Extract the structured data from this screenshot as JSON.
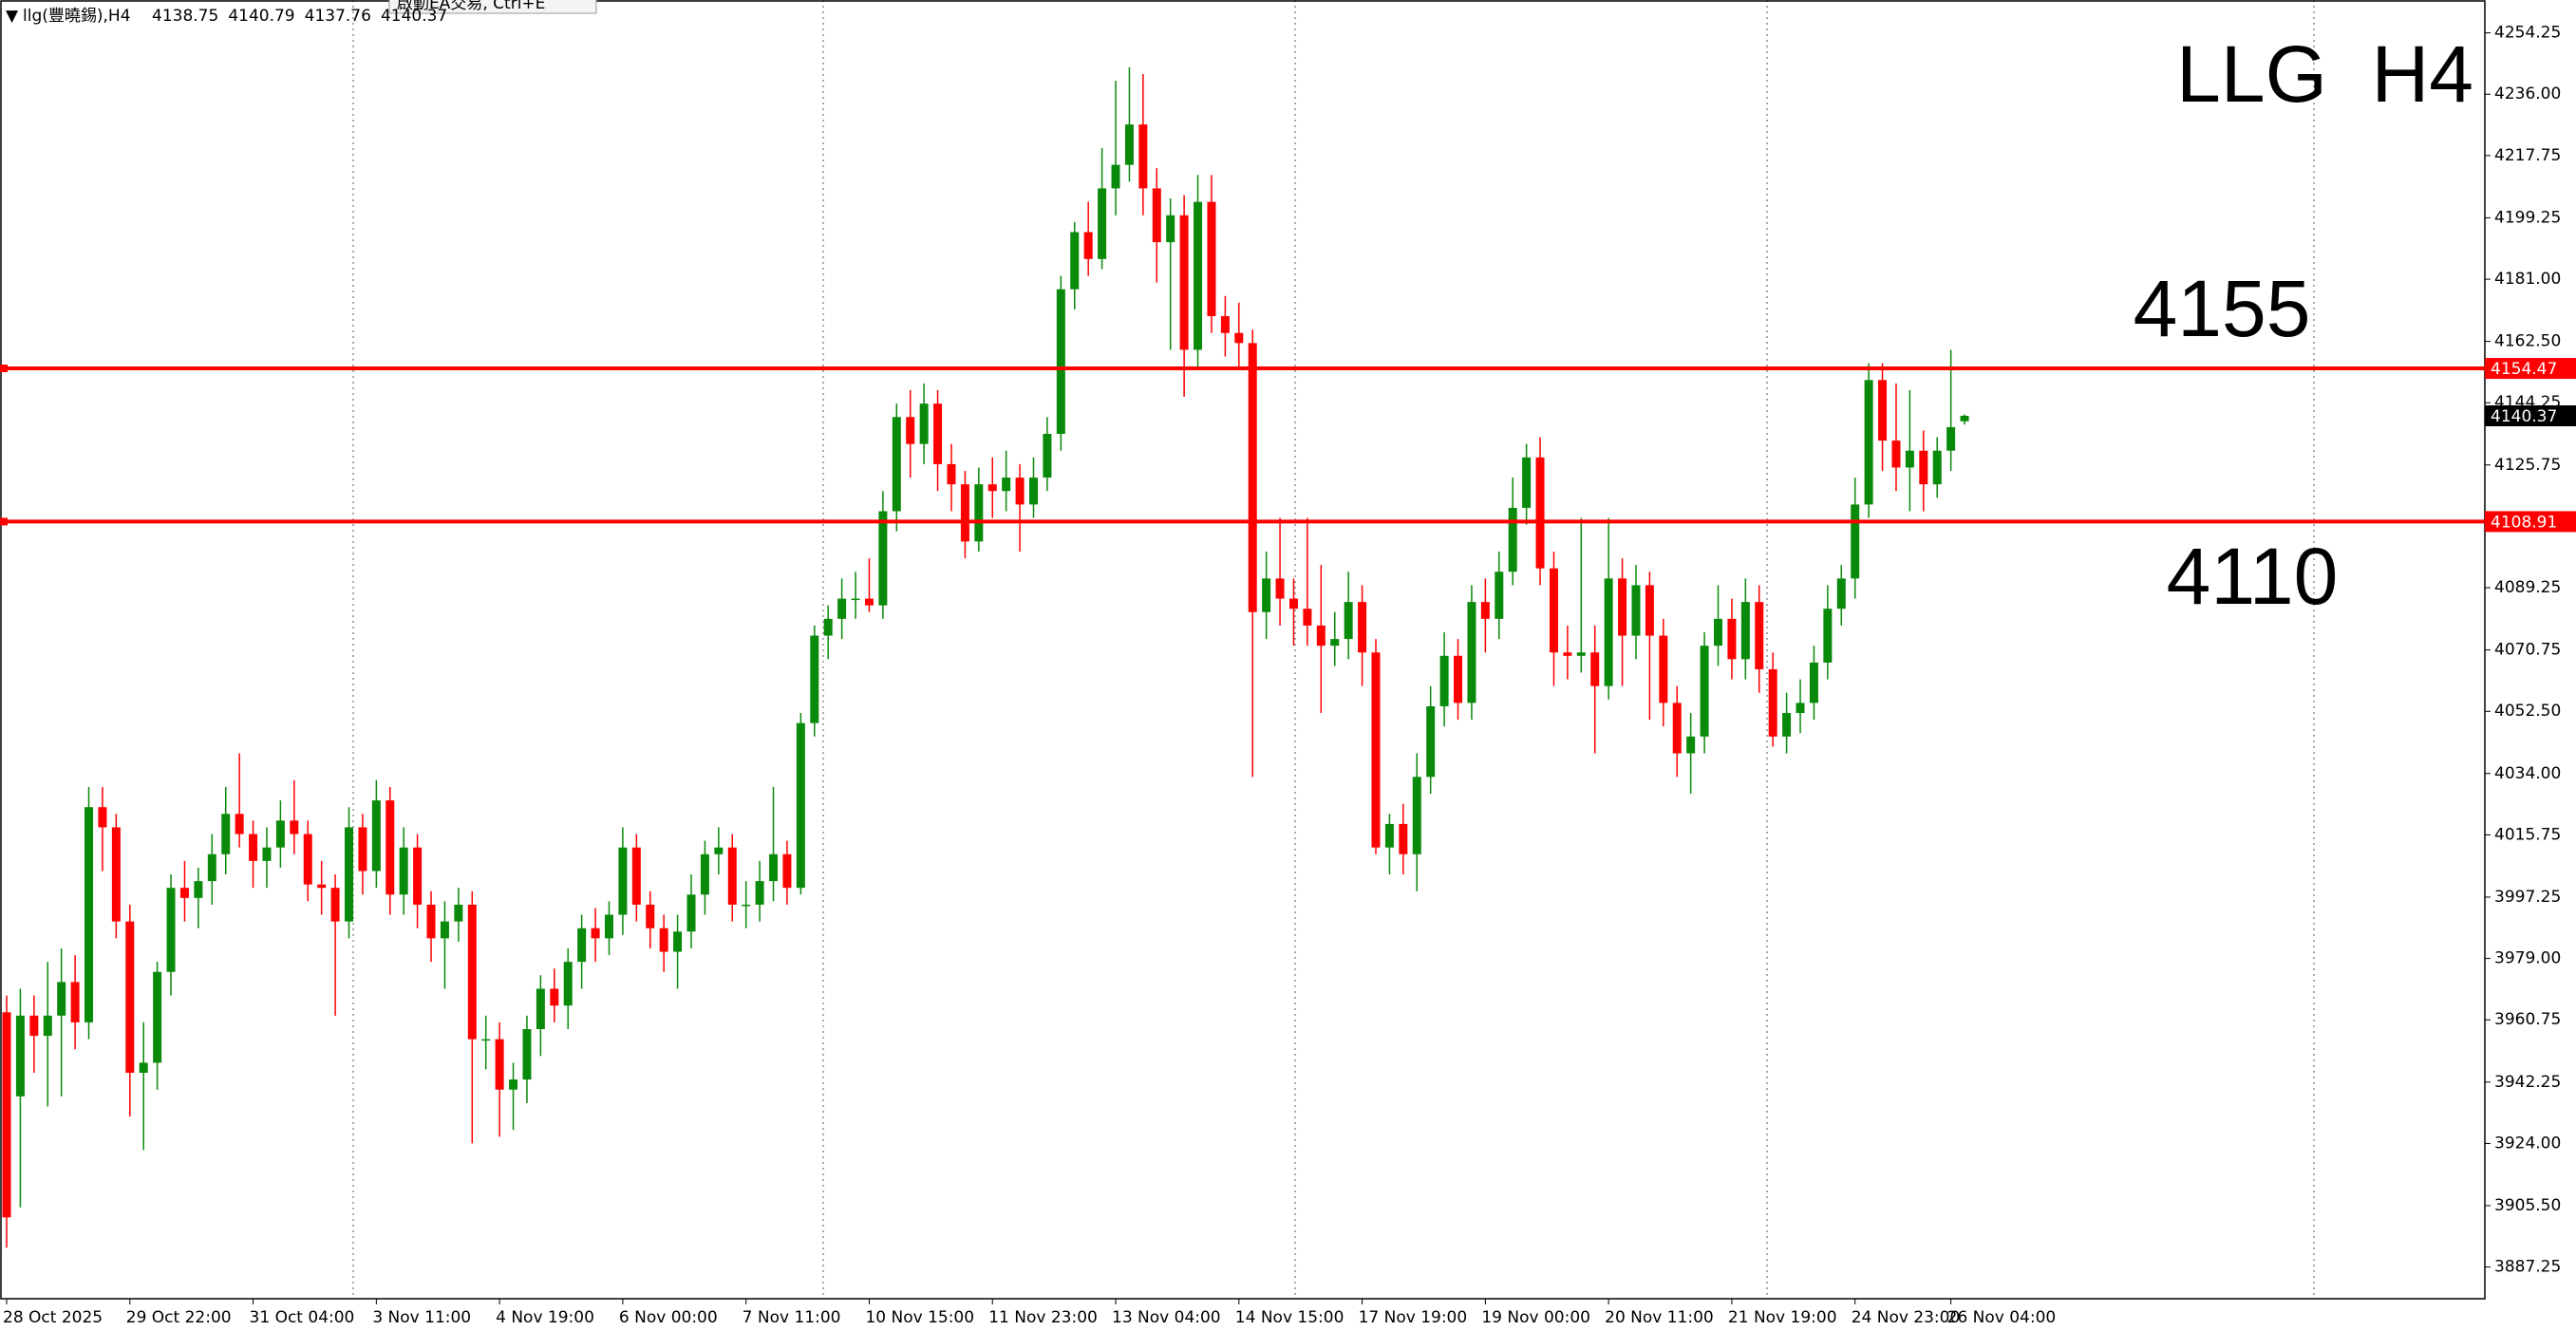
{
  "chart_data": {
    "type": "candlestick",
    "header": "llg(豐曉錫),H4",
    "tooltip": "啟動EA交易, Ctrl+E",
    "title": "LLG  H4",
    "annotations": [
      "4155",
      "4110"
    ],
    "up_color": "#0a8a0a",
    "down_color": "#ff0000",
    "ylim": [
      3887.25,
      4254.25
    ],
    "yticks": [
      4254.25,
      {
        "value": 4236,
        "label": "4236.00"
      },
      4217.75,
      4199.25,
      {
        "value": 4181,
        "label": "4181.00"
      },
      {
        "value": 4162.5,
        "label": "4162.50"
      },
      4144.25,
      4125.75,
      4089.25,
      4070.75,
      {
        "value": 4052.5,
        "label": "4052.50"
      },
      {
        "value": 4034,
        "label": "4034.00"
      },
      4015.75,
      3997.25,
      {
        "value": 3979,
        "label": "3979.00"
      },
      3960.75,
      3942.25,
      {
        "value": 3924,
        "label": "3924.00"
      },
      {
        "value": 3905.5,
        "label": "3905.50"
      },
      3887.25
    ],
    "hlines": [
      {
        "value": 4154.47,
        "color": "#ff0000"
      },
      {
        "value": 4108.91,
        "color": "#ff0000"
      }
    ],
    "categories": [
      "28 Oct 2025",
      null,
      null,
      null,
      null,
      null,
      null,
      null,
      null,
      "29 Oct 22:00",
      null,
      null,
      null,
      null,
      null,
      null,
      null,
      null,
      "31 Oct 04:00",
      null,
      null,
      null,
      null,
      null,
      null,
      null,
      null,
      "3 Nov 11:00",
      null,
      null,
      null,
      null,
      null,
      null,
      null,
      null,
      "4 Nov 19:00",
      null,
      null,
      null,
      null,
      null,
      null,
      null,
      null,
      "6 Nov 00:00",
      null,
      null,
      null,
      null,
      null,
      null,
      null,
      null,
      "7 Nov 11:00",
      null,
      null,
      null,
      null,
      null,
      null,
      null,
      null,
      "10 Nov 15:00",
      null,
      null,
      null,
      null,
      null,
      null,
      null,
      null,
      "11 Nov 23:00",
      null,
      null,
      null,
      null,
      null,
      null,
      null,
      null,
      "13 Nov 04:00",
      null,
      null,
      null,
      null,
      null,
      null,
      null,
      null,
      "14 Nov 15:00",
      null,
      null,
      null,
      null,
      null,
      null,
      null,
      null,
      "17 Nov 19:00",
      null,
      null,
      null,
      null,
      null,
      null,
      null,
      null,
      "19 Nov 00:00",
      null,
      null,
      null,
      null,
      null,
      null,
      null,
      null,
      "20 Nov 11:00",
      null,
      null,
      null,
      null,
      null,
      null,
      null,
      null,
      "21 Nov 19:00",
      null,
      null,
      null,
      null,
      null,
      null,
      null,
      null,
      "24 Nov 23:00",
      null,
      null,
      null,
      null,
      null,
      null,
      "26 Nov 04:00",
      null
    ],
    "ohlc": [
      [
        3963,
        3968,
        3893,
        3902
      ],
      [
        3938,
        3970,
        3905,
        3962
      ],
      [
        3962,
        3968,
        3945,
        3956
      ],
      [
        3956,
        3978,
        3935,
        3962
      ],
      [
        3962,
        3982,
        3938,
        3972
      ],
      [
        3972,
        3980,
        3952,
        3960
      ],
      [
        3960,
        4030,
        3955,
        4024
      ],
      [
        4024,
        4030,
        4005,
        4018
      ],
      [
        4018,
        4022,
        3985,
        3990
      ],
      [
        3990,
        3995,
        3932,
        3945
      ],
      [
        3945,
        3960,
        3922,
        3948
      ],
      [
        3948,
        3978,
        3940,
        3975
      ],
      [
        3975,
        4004,
        3968,
        4000
      ],
      [
        4000,
        4008,
        3990,
        3997
      ],
      [
        3997,
        4006,
        3988,
        4002
      ],
      [
        4002,
        4016,
        3995,
        4010
      ],
      [
        4010,
        4030,
        4004,
        4022
      ],
      [
        4022,
        4040,
        4012,
        4016
      ],
      [
        4016,
        4020,
        4000,
        4008
      ],
      [
        4008,
        4018,
        4000,
        4012
      ],
      [
        4012,
        4026,
        4006,
        4020
      ],
      [
        4020,
        4032,
        4010,
        4016
      ],
      [
        4016,
        4020,
        3996,
        4001
      ],
      [
        4001,
        4008,
        3992,
        4000
      ],
      [
        4000,
        4004,
        3962,
        3990
      ],
      [
        3990,
        4024,
        3985,
        4018
      ],
      [
        4018,
        4022,
        3998,
        4005
      ],
      [
        4005,
        4032,
        4000,
        4026
      ],
      [
        4026,
        4030,
        3992,
        3998
      ],
      [
        3998,
        4018,
        3992,
        4012
      ],
      [
        4012,
        4016,
        3988,
        3995
      ],
      [
        3995,
        3999,
        3978,
        3985
      ],
      [
        3985,
        3996,
        3970,
        3990
      ],
      [
        3990,
        4000,
        3984,
        3995
      ],
      [
        3995,
        3999,
        3924,
        3955
      ],
      [
        3955,
        3962,
        3946,
        3955
      ],
      [
        3955,
        3960,
        3926,
        3940
      ],
      [
        3940,
        3948,
        3928,
        3943
      ],
      [
        3943,
        3962,
        3936,
        3958
      ],
      [
        3958,
        3974,
        3950,
        3970
      ],
      [
        3970,
        3976,
        3960,
        3965
      ],
      [
        3965,
        3982,
        3958,
        3978
      ],
      [
        3978,
        3992,
        3970,
        3988
      ],
      [
        3988,
        3994,
        3978,
        3985
      ],
      [
        3985,
        3996,
        3980,
        3992
      ],
      [
        3992,
        4018,
        3986,
        4012
      ],
      [
        4012,
        4016,
        3990,
        3995
      ],
      [
        3995,
        3999,
        3982,
        3988
      ],
      [
        3988,
        3992,
        3975,
        3981
      ],
      [
        3981,
        3992,
        3970,
        3987
      ],
      [
        3987,
        4004,
        3982,
        3998
      ],
      [
        3998,
        4014,
        3992,
        4010
      ],
      [
        4010,
        4018,
        4004,
        4012
      ],
      [
        4012,
        4016,
        3990,
        3995
      ],
      [
        3995,
        4002,
        3988,
        3995
      ],
      [
        3995,
        4008,
        3990,
        4002
      ],
      [
        4002,
        4030,
        3996,
        4010
      ],
      [
        4010,
        4014,
        3995,
        4000
      ],
      [
        4000,
        4052,
        3998,
        4049
      ],
      [
        4049,
        4078,
        4045,
        4075
      ],
      [
        4075,
        4084,
        4068,
        4080
      ],
      [
        4080,
        4092,
        4074,
        4086
      ],
      [
        4086,
        4094,
        4080,
        4086
      ],
      [
        4086,
        4098,
        4082,
        4084
      ],
      [
        4084,
        4118,
        4080,
        4112
      ],
      [
        4112,
        4144,
        4106,
        4140
      ],
      [
        4140,
        4148,
        4122,
        4132
      ],
      [
        4132,
        4150,
        4126,
        4144
      ],
      [
        4144,
        4148,
        4118,
        4126
      ],
      [
        4126,
        4132,
        4112,
        4120
      ],
      [
        4120,
        4124,
        4098,
        4103
      ],
      [
        4103,
        4125,
        4100,
        4120
      ],
      [
        4120,
        4128,
        4110,
        4118
      ],
      [
        4118,
        4130,
        4112,
        4122
      ],
      [
        4122,
        4126,
        4100,
        4114
      ],
      [
        4114,
        4128,
        4110,
        4122
      ],
      [
        4122,
        4140,
        4118,
        4135
      ],
      [
        4135,
        4182,
        4130,
        4178
      ],
      [
        4178,
        4198,
        4172,
        4195
      ],
      [
        4195,
        4204,
        4182,
        4187
      ],
      [
        4187,
        4220,
        4184,
        4208
      ],
      [
        4208,
        4240,
        4200,
        4215
      ],
      [
        4215,
        4244,
        4210,
        4227
      ],
      [
        4227,
        4242,
        4200,
        4208
      ],
      [
        4208,
        4214,
        4180,
        4192
      ],
      [
        4192,
        4205,
        4160,
        4200
      ],
      [
        4200,
        4206,
        4146,
        4160
      ],
      [
        4160,
        4212,
        4155,
        4204
      ],
      [
        4204,
        4212,
        4165,
        4170
      ],
      [
        4170,
        4176,
        4158,
        4165
      ],
      [
        4165,
        4174,
        4155,
        4162
      ],
      [
        4162,
        4166,
        4033,
        4082
      ],
      [
        4082,
        4100,
        4074,
        4092
      ],
      [
        4092,
        4110,
        4078,
        4086
      ],
      [
        4086,
        4092,
        4072,
        4083
      ],
      [
        4083,
        4110,
        4072,
        4078
      ],
      [
        4078,
        4096,
        4052,
        4072
      ],
      [
        4072,
        4082,
        4066,
        4074
      ],
      [
        4074,
        4094,
        4068,
        4085
      ],
      [
        4085,
        4090,
        4060,
        4070
      ],
      [
        4070,
        4074,
        4010,
        4012
      ],
      [
        4012,
        4022,
        4004,
        4019
      ],
      [
        4019,
        4025,
        4004,
        4010
      ],
      [
        4010,
        4040,
        3999,
        4033
      ],
      [
        4033,
        4060,
        4028,
        4054
      ],
      [
        4054,
        4076,
        4048,
        4069
      ],
      [
        4069,
        4074,
        4050,
        4055
      ],
      [
        4055,
        4090,
        4050,
        4085
      ],
      [
        4085,
        4092,
        4070,
        4080
      ],
      [
        4080,
        4100,
        4074,
        4094
      ],
      [
        4094,
        4122,
        4090,
        4113
      ],
      [
        4113,
        4132,
        4108,
        4128
      ],
      [
        4128,
        4134,
        4090,
        4095
      ],
      [
        4095,
        4100,
        4060,
        4070
      ],
      [
        4070,
        4078,
        4062,
        4069
      ],
      [
        4069,
        4110,
        4064,
        4070
      ],
      [
        4070,
        4078,
        4040,
        4060
      ],
      [
        4060,
        4110,
        4056,
        4092
      ],
      [
        4092,
        4098,
        4060,
        4075
      ],
      [
        4075,
        4096,
        4068,
        4090
      ],
      [
        4090,
        4094,
        4050,
        4075
      ],
      [
        4075,
        4080,
        4048,
        4055
      ],
      [
        4055,
        4060,
        4033,
        4040
      ],
      [
        4040,
        4052,
        4028,
        4045
      ],
      [
        4045,
        4076,
        4040,
        4072
      ],
      [
        4072,
        4090,
        4066,
        4080
      ],
      [
        4080,
        4086,
        4062,
        4068
      ],
      [
        4068,
        4092,
        4062,
        4085
      ],
      [
        4085,
        4090,
        4058,
        4065
      ],
      [
        4065,
        4070,
        4042,
        4045
      ],
      [
        4045,
        4058,
        4040,
        4052
      ],
      [
        4052,
        4062,
        4046,
        4055
      ],
      [
        4055,
        4072,
        4050,
        4067
      ],
      [
        4067,
        4090,
        4062,
        4083
      ],
      [
        4083,
        4096,
        4078,
        4092
      ],
      [
        4092,
        4122,
        4086,
        4114
      ],
      [
        4114,
        4156,
        4110,
        4151
      ],
      [
        4151,
        4156,
        4124,
        4133
      ],
      [
        4133,
        4150,
        4118,
        4125
      ],
      [
        4125,
        4148,
        4112,
        4130
      ],
      [
        4130,
        4136,
        4112,
        4120
      ],
      [
        4120,
        4134,
        4116,
        4130
      ],
      [
        4130,
        4160,
        4124,
        4137
      ],
      [
        4138.75,
        4140.79,
        4137.76,
        4140.37
      ]
    ]
  }
}
